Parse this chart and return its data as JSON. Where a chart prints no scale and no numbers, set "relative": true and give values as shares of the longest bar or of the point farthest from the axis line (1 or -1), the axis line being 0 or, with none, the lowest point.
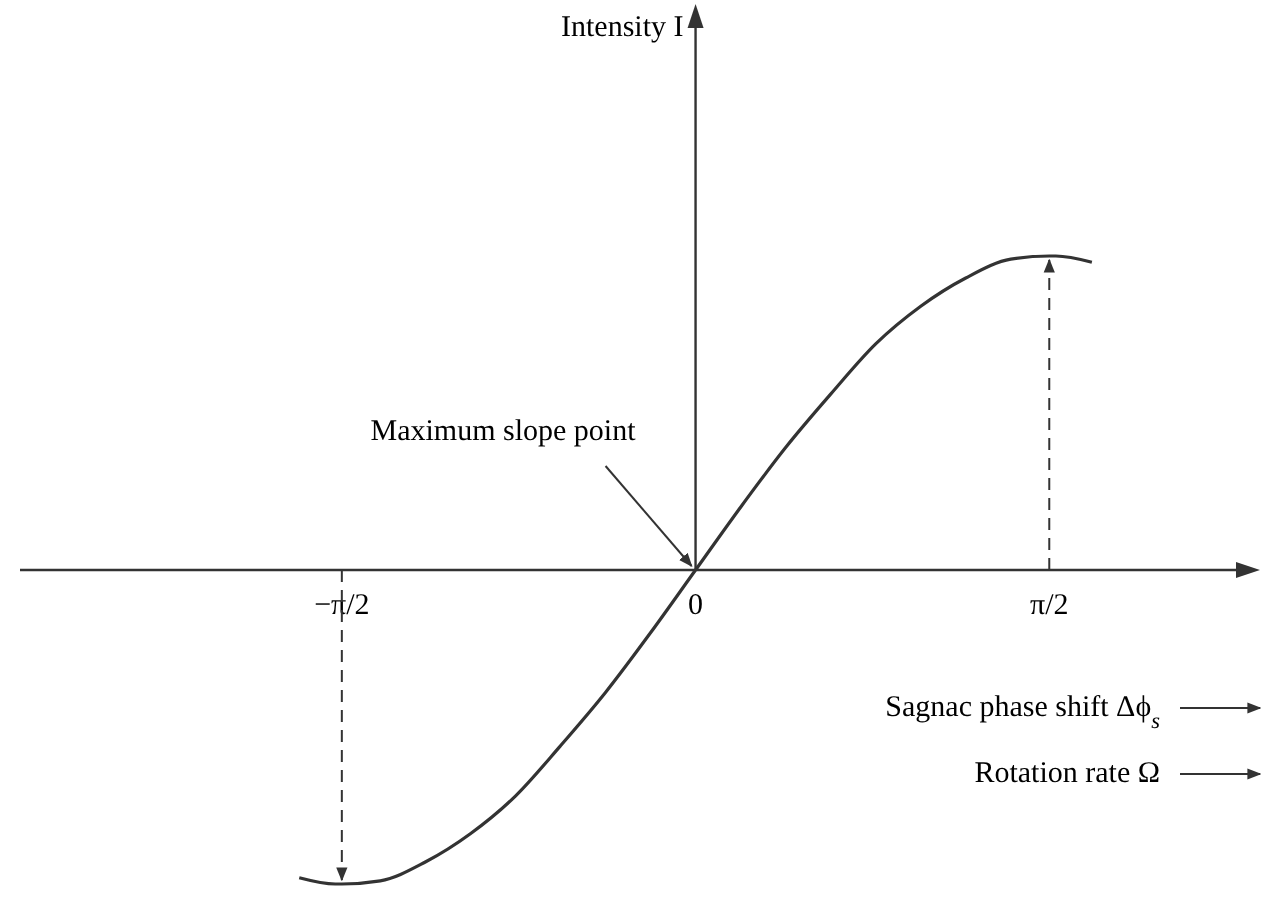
{
  "chart_data": {
    "type": "line",
    "relative": true,
    "xlabel": "Sagnac phase shift Δϕ$_{s}$",
    "annotations": [
      "Intensity I",
      {
        "text": "Maximum slope point",
        "x": 0,
        "y": 0
      },
      "Rotation rate Ω"
    ],
    "x": [
      -1.76,
      -1.6,
      -1.5708,
      -1.4,
      -1.2,
      -1.0,
      -0.8,
      -0.6,
      -0.4,
      -0.2,
      0,
      0.2,
      0.4,
      0.6,
      0.8,
      1.0,
      1.2,
      1.4,
      1.5708,
      1.6,
      1.76
    ],
    "series": [
      {
        "color": "#333333",
        "values": [
          -0.98,
          -1.0,
          -1.0,
          -0.99,
          -0.93,
          -0.84,
          -0.72,
          -0.56,
          -0.39,
          -0.2,
          0,
          0.2,
          0.39,
          0.56,
          0.72,
          0.84,
          0.93,
          0.99,
          1.0,
          1.0,
          0.98
        ]
      }
    ],
    "xlim": [
      -3.0,
      2.4
    ],
    "xticks": [
      {
        "value": -1.5708,
        "label": "−π/2"
      },
      0,
      {
        "value": 1.5708,
        "label": "π/2"
      }
    ],
    "ref_lines": [
      {
        "axis": "x",
        "value": -1.5708,
        "line_style": "dashed"
      },
      {
        "axis": "x",
        "value": 1.5708,
        "line_style": "dashed"
      }
    ],
    "line_style": "solid"
  }
}
